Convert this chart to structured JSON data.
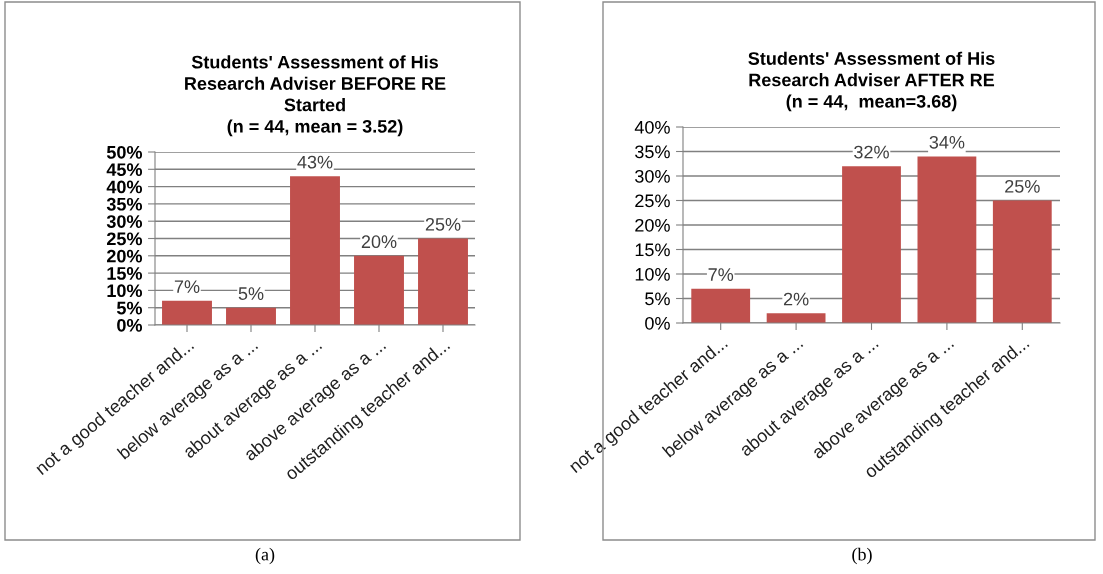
{
  "chart_data": [
    {
      "type": "bar",
      "title": "Students' Assessment of His\nResearch Adviser BEFORE RE\nStarted\n(n = 44, mean = 3.52)",
      "categories": [
        "not a good teacher and...",
        "below average as a ...",
        "about average as a ...",
        "above average as a ...",
        "outstanding teacher and..."
      ],
      "values": [
        7,
        5,
        43,
        20,
        25
      ],
      "value_labels": [
        "7%",
        "5%",
        "43%",
        "20%",
        "25%"
      ],
      "color": "#c0504d",
      "ylim": [
        0,
        50
      ],
      "yticks": [
        {
          "value": 0,
          "label": "0%"
        },
        {
          "value": 5,
          "label": "5%"
        },
        {
          "value": 10,
          "label": "10%"
        },
        {
          "value": 15,
          "label": "15%"
        },
        {
          "value": 20,
          "label": "20%"
        },
        {
          "value": 25,
          "label": "25%"
        },
        {
          "value": 30,
          "label": "30%"
        },
        {
          "value": 35,
          "label": "35%"
        },
        {
          "value": 40,
          "label": "40%"
        },
        {
          "value": 45,
          "label": "45%"
        },
        {
          "value": 50,
          "label": "50%"
        }
      ],
      "grid": "y",
      "annotations": [
        "(a)"
      ]
    },
    {
      "type": "bar",
      "title": "Students' Assessment of His\nResearch Adviser AFTER RE\n(n = 44,  mean=3.68)",
      "categories": [
        "not a good teacher and...",
        "below average as a ...",
        "about average as a ...",
        "above average as a ...",
        "outstanding teacher and..."
      ],
      "values": [
        7,
        2,
        32,
        34,
        25
      ],
      "value_labels": [
        "7%",
        "2%",
        "32%",
        "34%",
        "25%"
      ],
      "color": "#c0504d",
      "ylim": [
        0,
        40
      ],
      "yticks": [
        {
          "value": 0,
          "label": "0%"
        },
        {
          "value": 5,
          "label": "5%"
        },
        {
          "value": 10,
          "label": "10%"
        },
        {
          "value": 15,
          "label": "15%"
        },
        {
          "value": 20,
          "label": "20%"
        },
        {
          "value": 25,
          "label": "25%"
        },
        {
          "value": 30,
          "label": "30%"
        },
        {
          "value": 35,
          "label": "35%"
        },
        {
          "value": 40,
          "label": "40%"
        }
      ],
      "grid": "y",
      "annotations": [
        "(b)"
      ]
    }
  ]
}
